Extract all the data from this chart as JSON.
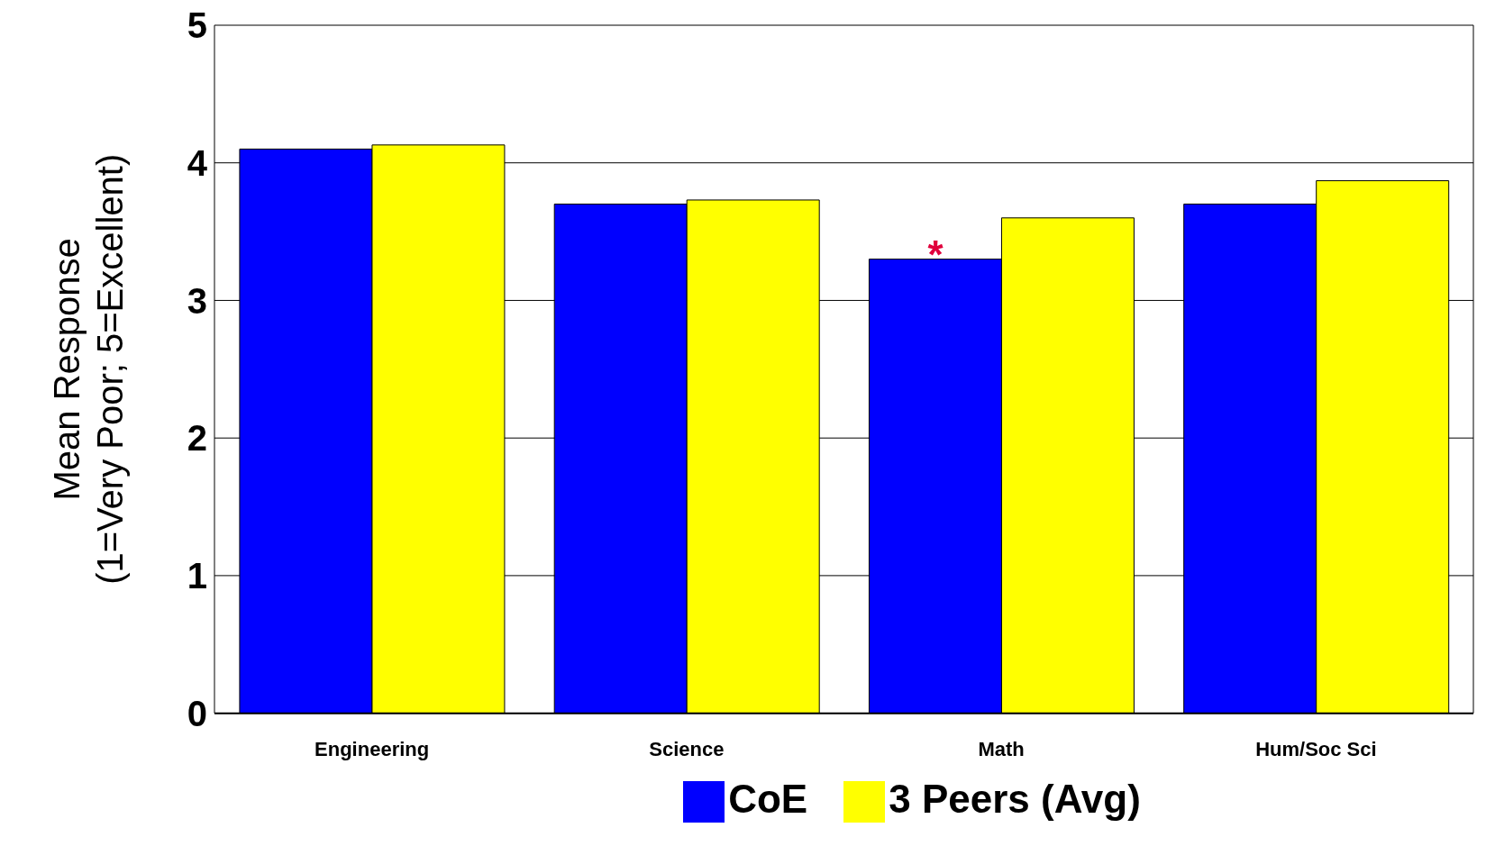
{
  "chart_data": {
    "type": "bar",
    "ylabel": "Mean Response\n(1=Very Poor; 5=Excellent)",
    "categories": [
      "Engineering",
      "Science",
      "Math",
      "Hum/Soc Sci"
    ],
    "series": [
      {
        "name": "CoE",
        "color": "#0000ff",
        "values": [
          4.1,
          3.7,
          3.3,
          3.7
        ]
      },
      {
        "name": "3 Peers (Avg)",
        "color": "#ffff00",
        "values": [
          4.13,
          3.73,
          3.6,
          3.87
        ]
      }
    ],
    "ylim": [
      0,
      5
    ],
    "yticks": [
      0,
      1,
      2,
      3,
      4,
      5
    ],
    "grid": "y",
    "legend": "bottom",
    "annotations": [
      {
        "text": "*",
        "x": "Math",
        "y": 3.3
      }
    ]
  }
}
